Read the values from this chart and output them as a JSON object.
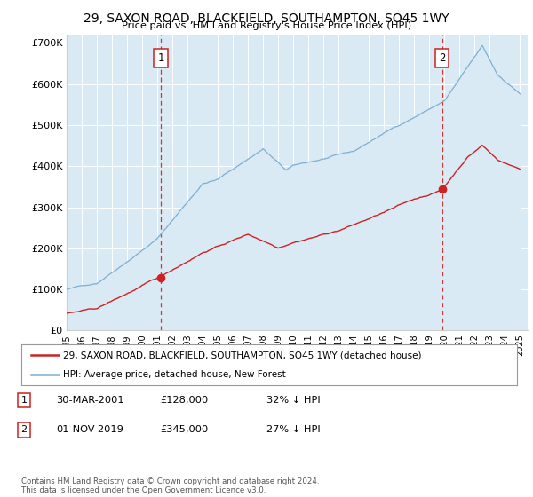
{
  "title": "29, SAXON ROAD, BLACKFIELD, SOUTHAMPTON, SO45 1WY",
  "subtitle": "Price paid vs. HM Land Registry's House Price Index (HPI)",
  "ylabel_ticks": [
    "£0",
    "£100K",
    "£200K",
    "£300K",
    "£400K",
    "£500K",
    "£600K",
    "£700K"
  ],
  "ytick_vals": [
    0,
    100000,
    200000,
    300000,
    400000,
    500000,
    600000,
    700000
  ],
  "ylim": [
    0,
    720000
  ],
  "xlim_start": 1995.0,
  "xlim_end": 2025.5,
  "hpi_color": "#7ab0d4",
  "hpi_fill_color": "#daeaf5",
  "price_color": "#cc2222",
  "dashed_color": "#cc2222",
  "marker1_year": 2001.25,
  "marker1_price": 128000,
  "marker2_year": 2019.83,
  "marker2_price": 345000,
  "legend_label1": "29, SAXON ROAD, BLACKFIELD, SOUTHAMPTON, SO45 1WY (detached house)",
  "legend_label2": "HPI: Average price, detached house, New Forest",
  "footnote1": "Contains HM Land Registry data © Crown copyright and database right 2024.",
  "footnote2": "This data is licensed under the Open Government Licence v3.0.",
  "annotation1_date": "30-MAR-2001",
  "annotation1_price": "£128,000",
  "annotation1_hpi": "32% ↓ HPI",
  "annotation2_date": "01-NOV-2019",
  "annotation2_price": "£345,000",
  "annotation2_hpi": "27% ↓ HPI",
  "background_color": "#ddeeff"
}
